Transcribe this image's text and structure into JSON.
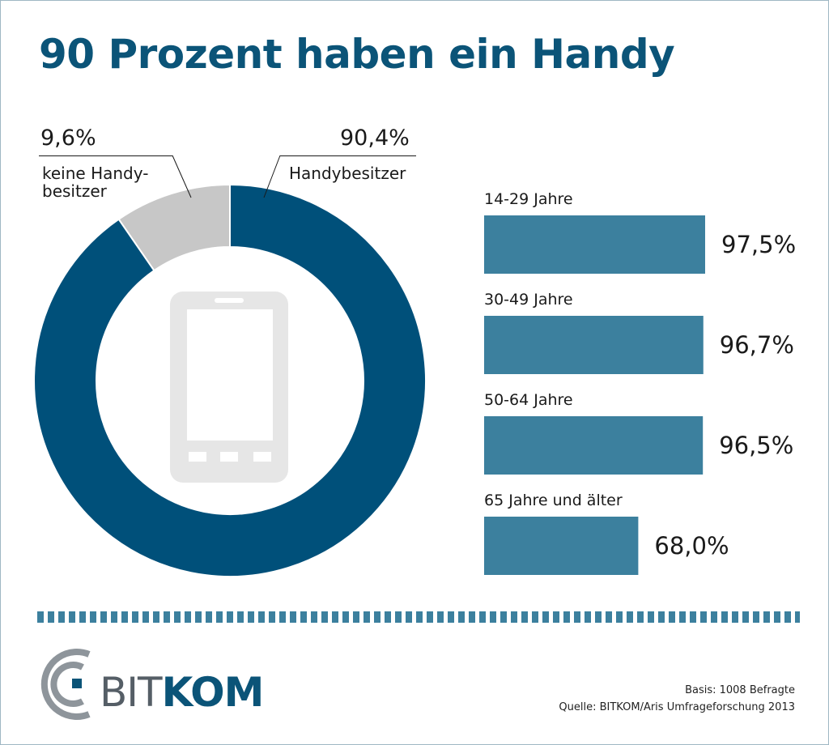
{
  "title": "90 Prozent haben ein Handy",
  "colors": {
    "title": "#0b5478",
    "donut_main": "#00507a",
    "donut_rest": "#c7c7c7",
    "bars": "#3c809e",
    "divider": "#3c809e",
    "phone_icon": "#e6e6e6"
  },
  "chart_data": [
    {
      "type": "pie",
      "subtype": "donut",
      "slices": [
        {
          "value": 90.4,
          "label_value": "90,4%",
          "label": "Handybesitzer"
        },
        {
          "value": 9.6,
          "label_value": "9,6%",
          "label": "keine Handy-besitzer",
          "label_lines": [
            "keine Handy-",
            "besitzer"
          ]
        }
      ],
      "center_icon": "smartphone-icon"
    },
    {
      "type": "bar",
      "orientation": "horizontal",
      "categories": [
        "14-29 Jahre",
        "30-49 Jahre",
        "50-64 Jahre",
        "65 Jahre und älter"
      ],
      "values": [
        97.5,
        96.7,
        96.5,
        68.0
      ],
      "value_labels": [
        "97,5%",
        "96,7%",
        "96,5%",
        "68,0%"
      ]
    }
  ],
  "logo": {
    "text_left": "BIT",
    "text_right": "KOM"
  },
  "footer": {
    "basis": "Basis: 1008 Befragte",
    "source": "Quelle: BITKOM/Aris Umfrageforschung 2013"
  }
}
